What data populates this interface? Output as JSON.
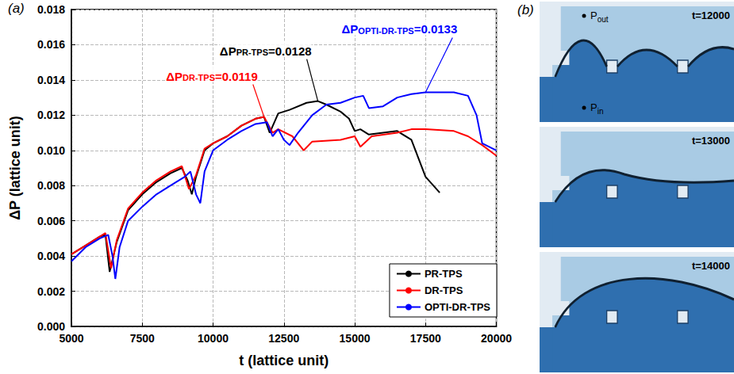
{
  "chart_data": {
    "type": "line",
    "title": "(a)",
    "x_label": "t (lattice unit)",
    "y_label": "ΔP (lattice unit)",
    "xlim": [
      5000,
      20000
    ],
    "xticks": [
      5000,
      7500,
      10000,
      12500,
      15000,
      17500,
      20000
    ],
    "ylim": [
      0,
      0.018
    ],
    "yticks": [
      {
        "value": 0,
        "label": "0.000"
      },
      {
        "value": 0.002,
        "label": "0.002"
      },
      {
        "value": 0.004,
        "label": "0.004"
      },
      {
        "value": 0.006,
        "label": "0.006"
      },
      {
        "value": 0.008,
        "label": "0.008"
      },
      {
        "value": 0.01,
        "label": "0.010"
      },
      {
        "value": 0.012,
        "label": "0.012"
      },
      {
        "value": 0.014,
        "label": "0.014"
      },
      {
        "value": 0.016,
        "label": "0.016"
      },
      {
        "value": 0.018,
        "label": "0.018"
      }
    ],
    "grid": true,
    "legend": "lower right",
    "series": [
      {
        "name": "PR-TPS",
        "color": "#000000",
        "x": [
          5000,
          5500,
          6000,
          6200,
          6350,
          6600,
          7000,
          7500,
          8000,
          8500,
          8900,
          9100,
          9250,
          9400,
          9700,
          10000,
          10500,
          11000,
          11500,
          11800,
          12000,
          12300,
          12700,
          13300,
          13700,
          14000,
          14500,
          14800,
          15000,
          15200,
          15500,
          16000,
          16500,
          17000,
          17500,
          18000
        ],
        "values": [
          0.0041,
          0.0046,
          0.0051,
          0.0052,
          0.0031,
          0.0048,
          0.0066,
          0.0075,
          0.0082,
          0.0087,
          0.009,
          0.0083,
          0.0075,
          0.0085,
          0.01,
          0.0104,
          0.0108,
          0.0114,
          0.0118,
          0.0119,
          0.011,
          0.0121,
          0.0123,
          0.0127,
          0.0128,
          0.0126,
          0.0122,
          0.0118,
          0.0111,
          0.0112,
          0.0109,
          0.011,
          0.0111,
          0.0106,
          0.0085,
          0.0076
        ]
      },
      {
        "name": "DR-TPS",
        "color": "#ff0000",
        "x": [
          5000,
          5500,
          6000,
          6200,
          6400,
          6600,
          7000,
          7500,
          8000,
          8500,
          8900,
          9150,
          9400,
          9700,
          10000,
          10500,
          11000,
          11500,
          11800,
          12100,
          12300,
          12800,
          13200,
          13500,
          14500,
          15000,
          15200,
          15600,
          16500,
          17000,
          17500,
          18500,
          19000,
          19500,
          20000
        ],
        "values": [
          0.0041,
          0.0046,
          0.0051,
          0.0053,
          0.0033,
          0.0049,
          0.0067,
          0.0076,
          0.0083,
          0.0088,
          0.0091,
          0.0078,
          0.0086,
          0.0101,
          0.0104,
          0.0108,
          0.0114,
          0.0118,
          0.0119,
          0.011,
          0.0112,
          0.0108,
          0.01,
          0.0105,
          0.0106,
          0.0108,
          0.0102,
          0.0108,
          0.011,
          0.0112,
          0.0112,
          0.0111,
          0.0108,
          0.0103,
          0.0097
        ]
      },
      {
        "name": "OPTI-DR-TPS",
        "color": "#0000ff",
        "x": [
          5000,
          5500,
          6000,
          6300,
          6450,
          6550,
          6700,
          7000,
          7500,
          8000,
          8500,
          9000,
          9200,
          9400,
          9550,
          9700,
          10000,
          10500,
          11000,
          11500,
          11900,
          12100,
          12300,
          12500,
          12700,
          13000,
          13500,
          14000,
          14500,
          15000,
          15300,
          15500,
          16000,
          16500,
          17000,
          17500,
          18500,
          19000,
          19300,
          19500,
          20000
        ],
        "values": [
          0.0037,
          0.0045,
          0.005,
          0.0052,
          0.004,
          0.0027,
          0.0045,
          0.006,
          0.0068,
          0.0075,
          0.008,
          0.0085,
          0.0088,
          0.0075,
          0.007,
          0.0088,
          0.01,
          0.0106,
          0.0111,
          0.0115,
          0.0116,
          0.0108,
          0.0112,
          0.0106,
          0.0103,
          0.011,
          0.012,
          0.0126,
          0.0127,
          0.013,
          0.0131,
          0.0124,
          0.0125,
          0.013,
          0.0132,
          0.0133,
          0.0133,
          0.0131,
          0.012,
          0.0104,
          0.01
        ]
      }
    ],
    "annotations": [
      {
        "series": "PR-TPS",
        "text": "ΔP",
        "subscript": "PR-TPS",
        "suffix": "=0.0128",
        "x": 13700,
        "y": 0.0128
      },
      {
        "series": "DR-TPS",
        "text": "ΔP",
        "subscript": "DR-TPS",
        "suffix": "=0.0119",
        "x": 11800,
        "y": 0.0119
      },
      {
        "series": "OPTI-DR-TPS",
        "text": "ΔP",
        "subscript": "OPTI-DR-TPS",
        "suffix": "=0.0133",
        "x": 17500,
        "y": 0.0133
      }
    ]
  },
  "panel_b": {
    "title": "(b)",
    "frames": [
      "t=12000",
      "t=13000",
      "t=14000"
    ],
    "probes": [
      {
        "text": "P",
        "subscript": "out"
      },
      {
        "text": "P",
        "subscript": "in"
      }
    ]
  }
}
